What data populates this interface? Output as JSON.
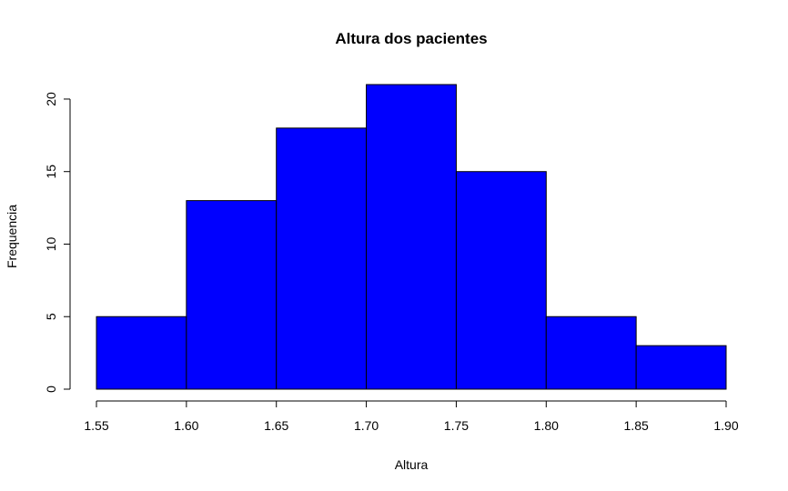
{
  "chart_data": {
    "type": "bar",
    "title": "Altura dos pacientes",
    "xlabel": "Altura",
    "ylabel": "Frequencia",
    "bins": [
      {
        "start": 1.55,
        "end": 1.6,
        "value": 5
      },
      {
        "start": 1.6,
        "end": 1.65,
        "value": 13
      },
      {
        "start": 1.65,
        "end": 1.7,
        "value": 18
      },
      {
        "start": 1.7,
        "end": 1.75,
        "value": 21
      },
      {
        "start": 1.75,
        "end": 1.8,
        "value": 15
      },
      {
        "start": 1.8,
        "end": 1.85,
        "value": 5
      },
      {
        "start": 1.85,
        "end": 1.9,
        "value": 3
      }
    ],
    "x_ticks": [
      "1.55",
      "1.60",
      "1.65",
      "1.70",
      "1.75",
      "1.80",
      "1.85",
      "1.90"
    ],
    "y_ticks": [
      "0",
      "5",
      "10",
      "15",
      "20"
    ],
    "xlim": [
      1.55,
      1.9
    ],
    "ylim": [
      0,
      21
    ],
    "bar_color": "#0000ff",
    "grid": false
  }
}
